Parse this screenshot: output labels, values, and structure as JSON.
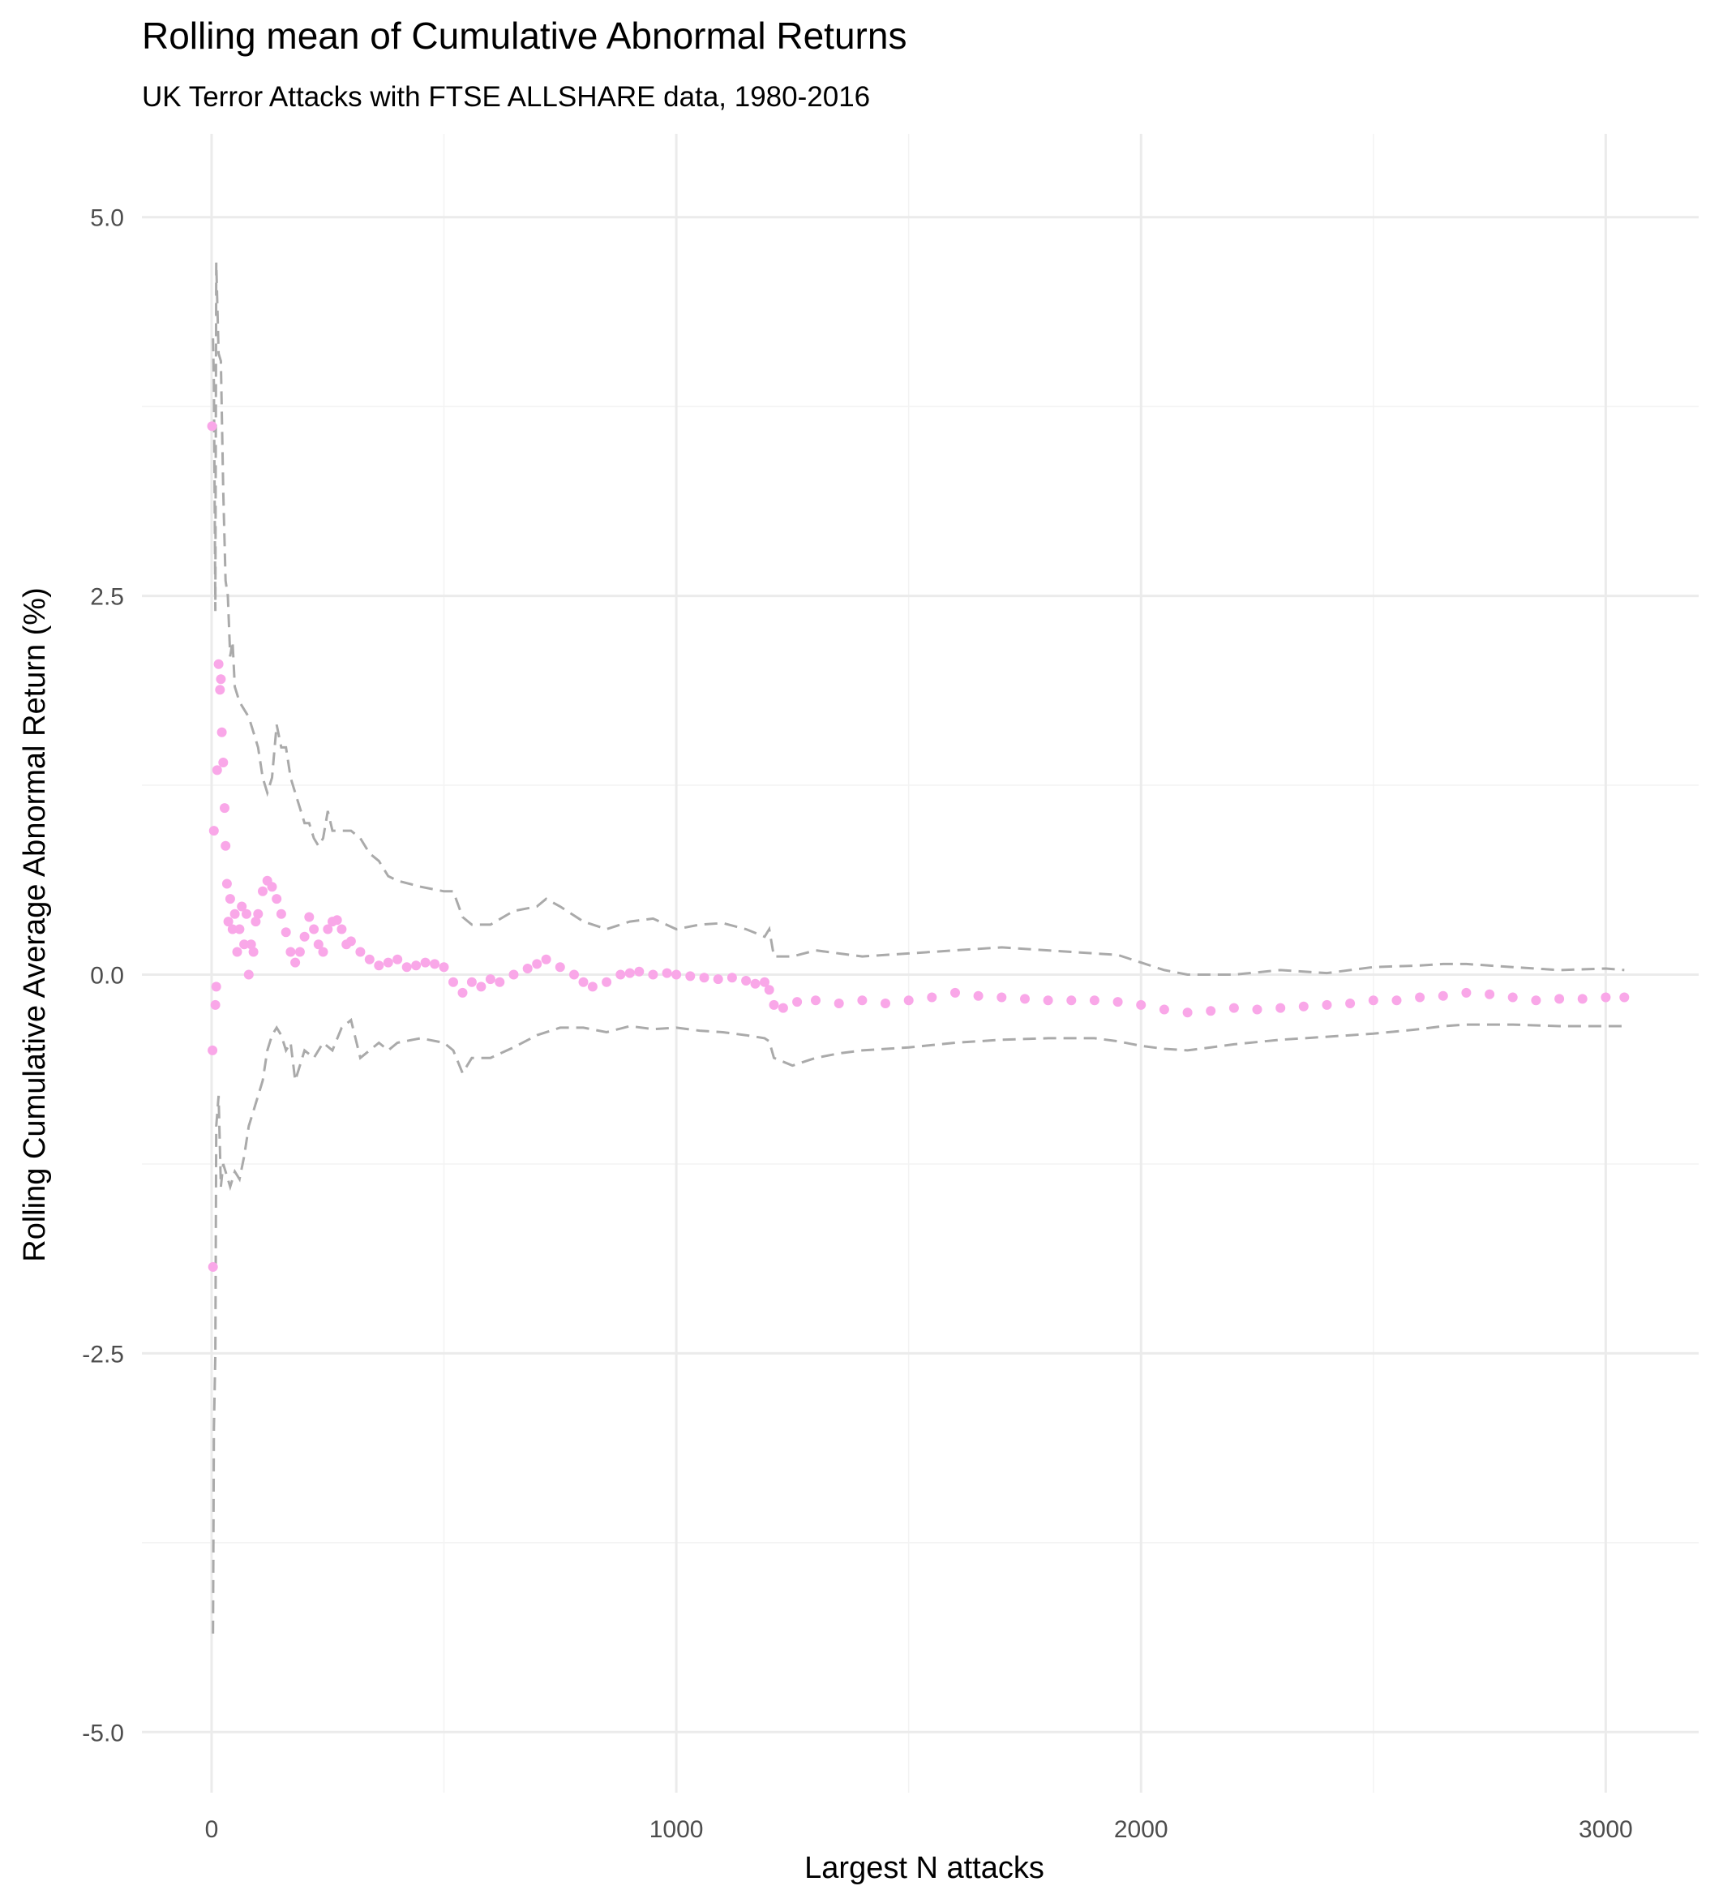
{
  "chart_data": {
    "type": "scatter",
    "title": "Rolling mean of Cumulative Abnormal Returns",
    "subtitle": "UK Terror Attacks with FTSE ALLSHARE data, 1980-2016",
    "xlabel": "Largest N attacks",
    "ylabel": "Rolling Cumulative Average Abnormal Return (%)",
    "xlim": [
      -150,
      3200
    ],
    "ylim": [
      -5.4,
      5.55
    ],
    "x_ticks": [
      0,
      1000,
      2000,
      3000
    ],
    "x_tick_labels": [
      "0",
      "1000",
      "2000",
      "3000"
    ],
    "y_ticks": [
      -5.0,
      -2.5,
      0.0,
      2.5,
      5.0
    ],
    "y_tick_labels": [
      "-5.0",
      "-2.5",
      "0.0",
      "2.5",
      "5.0"
    ],
    "grid": true,
    "legend": "none",
    "series": [
      {
        "role": "rolling-mean",
        "style": "points",
        "color": "#f9a7e8",
        "x": [
          1,
          2,
          3,
          5,
          8,
          10,
          12,
          15,
          18,
          20,
          22,
          25,
          28,
          30,
          33,
          36,
          40,
          45,
          50,
          55,
          60,
          65,
          70,
          75,
          80,
          85,
          90,
          95,
          100,
          110,
          120,
          130,
          140,
          150,
          160,
          170,
          180,
          190,
          200,
          210,
          220,
          230,
          240,
          250,
          260,
          270,
          280,
          290,
          300,
          320,
          340,
          360,
          380,
          400,
          420,
          440,
          460,
          480,
          500,
          520,
          540,
          560,
          580,
          600,
          620,
          650,
          680,
          700,
          720,
          750,
          780,
          800,
          820,
          850,
          880,
          900,
          920,
          950,
          980,
          1000,
          1030,
          1060,
          1090,
          1120,
          1150,
          1170,
          1190,
          1200,
          1210,
          1230,
          1260,
          1300,
          1350,
          1400,
          1450,
          1500,
          1550,
          1600,
          1650,
          1700,
          1750,
          1800,
          1850,
          1900,
          1950,
          2000,
          2050,
          2100,
          2150,
          2200,
          2250,
          2300,
          2350,
          2400,
          2450,
          2500,
          2550,
          2600,
          2650,
          2700,
          2750,
          2800,
          2850,
          2900,
          2950,
          3000,
          3040
        ],
        "y": [
          3.62,
          -0.5,
          -1.93,
          0.95,
          -0.2,
          -0.08,
          1.35,
          2.05,
          1.88,
          1.95,
          1.6,
          1.4,
          1.1,
          0.85,
          0.6,
          0.35,
          0.5,
          0.3,
          0.4,
          0.15,
          0.3,
          0.45,
          0.2,
          0.4,
          0.0,
          0.2,
          0.15,
          0.35,
          0.4,
          0.55,
          0.62,
          0.58,
          0.5,
          0.4,
          0.28,
          0.15,
          0.08,
          0.15,
          0.25,
          0.38,
          0.3,
          0.2,
          0.15,
          0.3,
          0.35,
          0.36,
          0.3,
          0.2,
          0.22,
          0.15,
          0.1,
          0.06,
          0.08,
          0.1,
          0.05,
          0.06,
          0.08,
          0.07,
          0.05,
          -0.05,
          -0.12,
          -0.05,
          -0.08,
          -0.03,
          -0.05,
          0.0,
          0.04,
          0.07,
          0.1,
          0.05,
          0.0,
          -0.05,
          -0.08,
          -0.05,
          0.0,
          0.01,
          0.02,
          0.0,
          0.01,
          0.0,
          -0.01,
          -0.02,
          -0.03,
          -0.02,
          -0.04,
          -0.06,
          -0.05,
          -0.1,
          -0.2,
          -0.22,
          -0.18,
          -0.17,
          -0.19,
          -0.17,
          -0.19,
          -0.17,
          -0.15,
          -0.12,
          -0.14,
          -0.15,
          -0.16,
          -0.17,
          -0.17,
          -0.17,
          -0.18,
          -0.2,
          -0.23,
          -0.25,
          -0.24,
          -0.22,
          -0.23,
          -0.22,
          -0.21,
          -0.2,
          -0.19,
          -0.17,
          -0.17,
          -0.15,
          -0.14,
          -0.12,
          -0.13,
          -0.15,
          -0.17,
          -0.16,
          -0.16,
          -0.15,
          -0.15
        ]
      },
      {
        "role": "upper-bound",
        "style": "dashed-line",
        "color": "#aaaaaa",
        "x": [
          3,
          5,
          8,
          10,
          15,
          20,
          25,
          30,
          35,
          40,
          45,
          50,
          60,
          70,
          80,
          90,
          100,
          110,
          120,
          130,
          140,
          150,
          160,
          170,
          180,
          190,
          200,
          210,
          220,
          230,
          240,
          250,
          260,
          280,
          300,
          320,
          340,
          360,
          380,
          400,
          450,
          500,
          520,
          540,
          560,
          600,
          650,
          700,
          720,
          750,
          800,
          850,
          900,
          950,
          1000,
          1050,
          1100,
          1150,
          1190,
          1200,
          1210,
          1250,
          1300,
          1350,
          1400,
          1500,
          1600,
          1700,
          1800,
          1900,
          1950,
          2000,
          2050,
          2100,
          2150,
          2200,
          2300,
          2400,
          2500,
          2600,
          2650,
          2700,
          2800,
          2900,
          3000,
          3040
        ],
        "y": [
          4.2,
          3.9,
          2.4,
          4.7,
          4.1,
          4.05,
          3.2,
          2.6,
          2.5,
          2.1,
          2.2,
          1.9,
          1.8,
          1.75,
          1.7,
          1.6,
          1.5,
          1.3,
          1.2,
          1.3,
          1.65,
          1.5,
          1.5,
          1.3,
          1.2,
          1.1,
          1.0,
          1.0,
          0.9,
          0.85,
          0.9,
          1.08,
          0.95,
          0.95,
          0.95,
          0.9,
          0.8,
          0.75,
          0.65,
          0.62,
          0.58,
          0.55,
          0.55,
          0.38,
          0.33,
          0.33,
          0.42,
          0.45,
          0.5,
          0.45,
          0.35,
          0.3,
          0.35,
          0.37,
          0.3,
          0.33,
          0.34,
          0.3,
          0.25,
          0.3,
          0.12,
          0.12,
          0.16,
          0.14,
          0.12,
          0.14,
          0.16,
          0.18,
          0.16,
          0.14,
          0.13,
          0.08,
          0.03,
          0.0,
          0.0,
          0.0,
          0.03,
          0.01,
          0.05,
          0.06,
          0.07,
          0.07,
          0.05,
          0.03,
          0.04,
          0.03
        ]
      },
      {
        "role": "lower-bound",
        "style": "dashed-line",
        "color": "#aaaaaa",
        "x": [
          3,
          5,
          8,
          10,
          15,
          20,
          25,
          30,
          40,
          50,
          60,
          70,
          80,
          90,
          100,
          110,
          120,
          130,
          140,
          150,
          160,
          170,
          180,
          190,
          200,
          220,
          240,
          260,
          280,
          300,
          320,
          340,
          360,
          380,
          400,
          450,
          500,
          520,
          540,
          560,
          600,
          650,
          700,
          750,
          800,
          850,
          900,
          950,
          1000,
          1050,
          1100,
          1150,
          1190,
          1200,
          1210,
          1250,
          1300,
          1350,
          1400,
          1500,
          1600,
          1700,
          1800,
          1900,
          1950,
          2000,
          2050,
          2100,
          2150,
          2200,
          2300,
          2400,
          2500,
          2600,
          2650,
          2700,
          2800,
          2900,
          3000,
          3040
        ],
        "y": [
          -4.35,
          -3.0,
          -2.5,
          -1.0,
          -0.8,
          -1.4,
          -1.25,
          -1.3,
          -1.4,
          -1.3,
          -1.35,
          -1.2,
          -1.0,
          -0.9,
          -0.8,
          -0.7,
          -0.5,
          -0.4,
          -0.35,
          -0.4,
          -0.5,
          -0.45,
          -0.7,
          -0.6,
          -0.5,
          -0.55,
          -0.45,
          -0.5,
          -0.35,
          -0.3,
          -0.55,
          -0.5,
          -0.45,
          -0.5,
          -0.45,
          -0.42,
          -0.45,
          -0.5,
          -0.65,
          -0.55,
          -0.55,
          -0.48,
          -0.4,
          -0.35,
          -0.35,
          -0.38,
          -0.34,
          -0.36,
          -0.35,
          -0.37,
          -0.38,
          -0.4,
          -0.42,
          -0.44,
          -0.55,
          -0.6,
          -0.55,
          -0.52,
          -0.5,
          -0.48,
          -0.45,
          -0.43,
          -0.42,
          -0.42,
          -0.44,
          -0.47,
          -0.49,
          -0.5,
          -0.48,
          -0.46,
          -0.43,
          -0.41,
          -0.39,
          -0.36,
          -0.34,
          -0.33,
          -0.33,
          -0.34,
          -0.34,
          -0.34
        ]
      }
    ]
  }
}
